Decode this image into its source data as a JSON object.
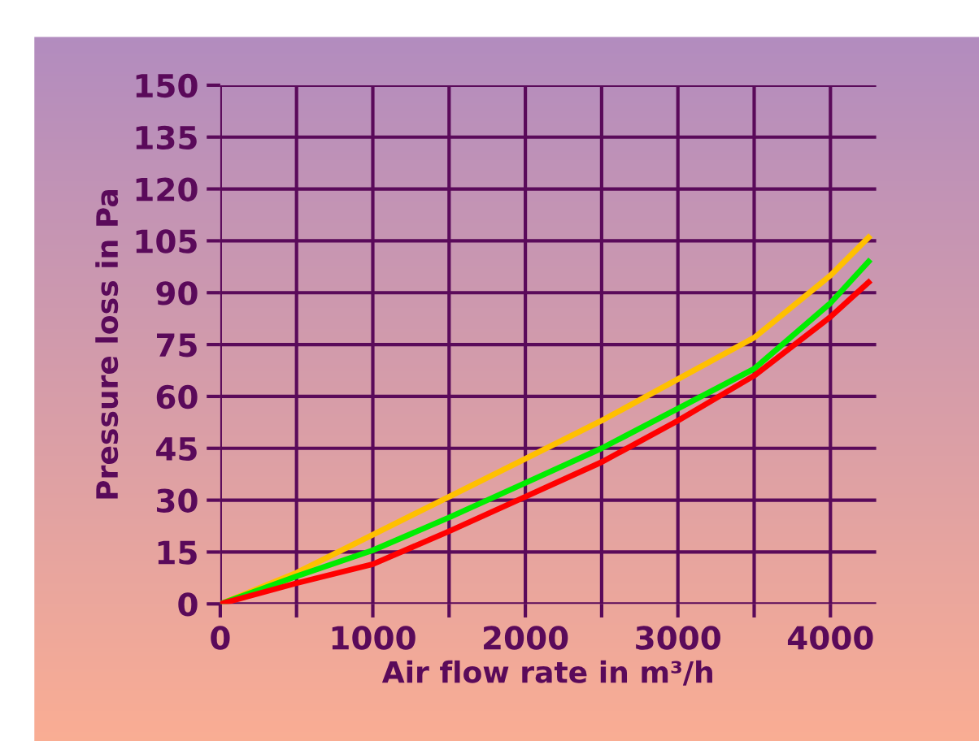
{
  "chart_data": {
    "type": "line",
    "xlabel": "Air flow rate in m³/h",
    "ylabel": "Pressure loss in Pa",
    "xlim": [
      0,
      4300
    ],
    "ylim": [
      0,
      150
    ],
    "xticks": [
      0,
      {
        "value": 500,
        "label": null
      },
      1000,
      {
        "value": 1500,
        "label": null
      },
      2000,
      {
        "value": 2500,
        "label": null
      },
      3000,
      {
        "value": 3500,
        "label": null
      },
      4000
    ],
    "yticks": [
      0,
      15,
      30,
      45,
      60,
      75,
      90,
      105,
      120,
      135,
      150
    ],
    "grid": true,
    "legend": false,
    "marker": "none",
    "line_style": "solid",
    "x": [
      0,
      500,
      1000,
      1500,
      2000,
      2500,
      3000,
      3500,
      4000,
      4250
    ],
    "series": [
      {
        "color": "#ffc000",
        "values": [
          0,
          9,
          20,
          31,
          42,
          53,
          65,
          77,
          95,
          106
        ]
      },
      {
        "color": "#00ee00",
        "values": [
          0,
          8,
          15.5,
          25,
          35,
          45,
          56.5,
          68,
          87,
          99
        ]
      },
      {
        "color": "#ff0000",
        "values": [
          0,
          6,
          11.5,
          21,
          31,
          41,
          53,
          66,
          83,
          93
        ]
      }
    ]
  }
}
